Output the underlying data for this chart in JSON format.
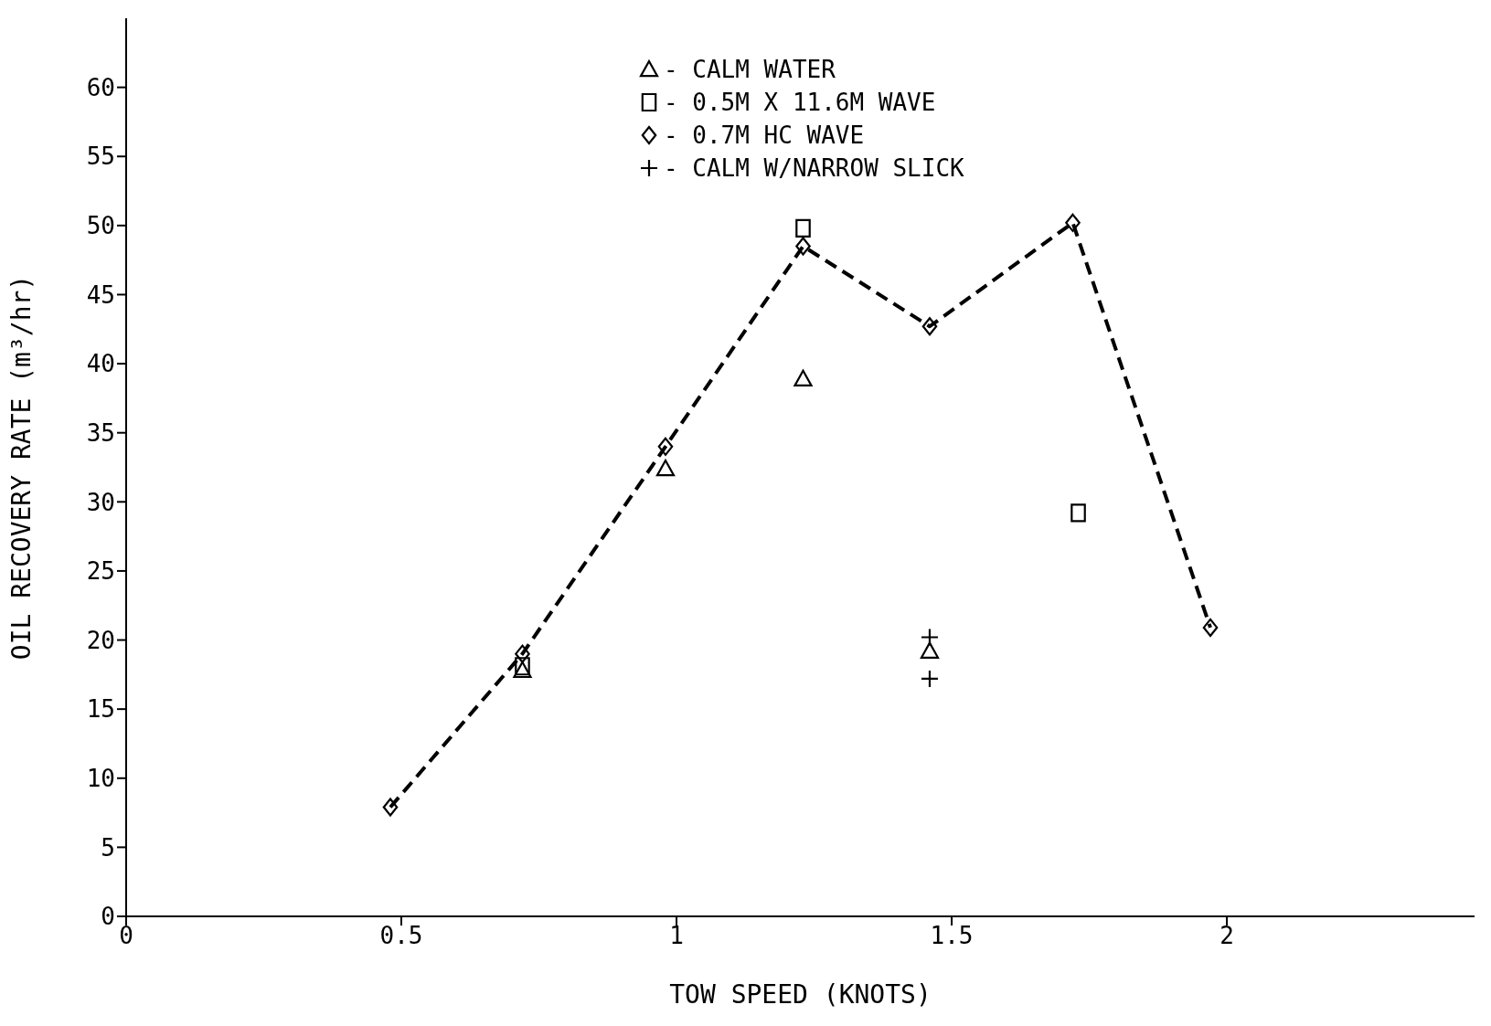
{
  "chart_data": {
    "type": "scatter",
    "xlabel": "TOW SPEED (KNOTS)",
    "ylabel": "OIL RECOVERY RATE (m³/hr)",
    "xlim": [
      0,
      2.45
    ],
    "xticks": [
      0,
      0.5,
      1,
      1.5,
      2
    ],
    "ylim": [
      0,
      65
    ],
    "yticks": [
      0,
      5,
      10,
      15,
      20,
      25,
      30,
      35,
      40,
      45,
      50,
      55,
      60
    ],
    "grid": false,
    "legend": "top",
    "series": [
      {
        "name": "- CALM WATER",
        "marker": "triangle",
        "color": "#000000",
        "x": [
          0.72,
          0.98,
          1.23,
          1.46
        ],
        "values": [
          17.8,
          32.4,
          38.9,
          19.2
        ]
      },
      {
        "name": "- 0.5M X 11.6M WAVE",
        "marker": "square",
        "color": "#000000",
        "x": [
          0.72,
          1.23,
          1.73
        ],
        "values": [
          18.1,
          49.8,
          29.2
        ]
      },
      {
        "name": "- 0.7M HC WAVE",
        "type": "line",
        "marker": "diamond",
        "line_style": "dashed",
        "color": "#000000",
        "x": [
          0.48,
          0.72,
          0.98,
          1.23,
          1.46,
          1.72,
          1.97
        ],
        "values": [
          7.9,
          19.0,
          34.0,
          48.5,
          42.7,
          50.2,
          20.9
        ]
      },
      {
        "name": "- CALM W/NARROW SLICK",
        "marker": "cross",
        "color": "#000000",
        "x": [
          1.46,
          1.46
        ],
        "values": [
          20.2,
          17.2
        ]
      }
    ]
  }
}
